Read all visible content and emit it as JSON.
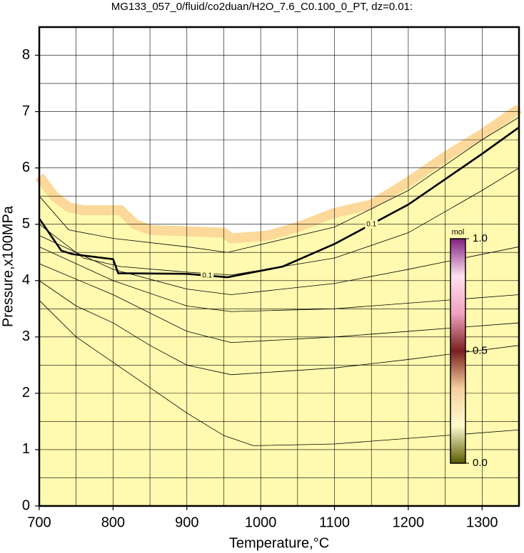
{
  "chart_data": {
    "type": "contour",
    "title": "MG133_057_0/fluid/co2duan/H2O_7.6_C0.100_0_PT, dz=0.01:",
    "x_label": "Temperature,°C",
    "y_label": "Pressure,x100MPa",
    "xlim": [
      700,
      1350
    ],
    "ylim": [
      0,
      8.5
    ],
    "xticks": [
      700,
      800,
      900,
      1000,
      1100,
      1200,
      1300
    ],
    "yticks": [
      0,
      1,
      2,
      3,
      4,
      5,
      6,
      7,
      8
    ],
    "xgrid": [
      700,
      750,
      800,
      850,
      900,
      950,
      1000,
      1050,
      1100,
      1150,
      1200,
      1250,
      1300,
      1350
    ],
    "ygrid": [
      0,
      0.5,
      1,
      1.5,
      2,
      2.5,
      3,
      3.5,
      4,
      4.5,
      5,
      5.5,
      6,
      6.5,
      7,
      7.5,
      8,
      8.5
    ],
    "fill_color": "#fffaaf",
    "edge_color": "#fcd99a",
    "data_boundary": {
      "x": [
        700,
        720,
        740,
        760,
        810,
        830,
        850,
        950,
        960,
        1010,
        1050,
        1100,
        1150,
        1200,
        1250,
        1300,
        1350
      ],
      "y": [
        5.85,
        5.5,
        5.3,
        5.25,
        5.25,
        5.0,
        4.9,
        4.85,
        4.75,
        4.8,
        4.95,
        5.2,
        5.35,
        5.75,
        6.2,
        6.6,
        7.05
      ]
    },
    "contours": [
      {
        "x": [
          700,
          750,
          800,
          850,
          900,
          950,
          990,
          1100,
          1200,
          1350
        ],
        "y": [
          3.65,
          3.0,
          2.55,
          2.1,
          1.65,
          1.25,
          1.07,
          1.1,
          1.2,
          1.35
        ]
      },
      {
        "x": [
          700,
          750,
          800,
          850,
          900,
          960,
          1100,
          1200,
          1350
        ],
        "y": [
          4.0,
          3.55,
          3.25,
          2.85,
          2.5,
          2.33,
          2.45,
          2.6,
          2.85
        ]
      },
      {
        "x": [
          700,
          800,
          900,
          960,
          1100,
          1200,
          1350
        ],
        "y": [
          4.3,
          3.75,
          3.1,
          2.9,
          3.0,
          3.1,
          3.25
        ]
      },
      {
        "x": [
          700,
          800,
          900,
          960,
          1100,
          1350
        ],
        "y": [
          4.6,
          4.0,
          3.55,
          3.45,
          3.5,
          3.75
        ]
      },
      {
        "x": [
          700,
          800,
          900,
          960,
          1100,
          1200,
          1350
        ],
        "y": [
          4.8,
          4.2,
          3.85,
          3.75,
          3.95,
          4.2,
          4.6
        ]
      },
      {
        "x": [
          700,
          760,
          810,
          900,
          960,
          1100,
          1200,
          1300,
          1350
        ],
        "y": [
          5.0,
          4.4,
          4.25,
          4.15,
          4.1,
          4.4,
          4.85,
          5.6,
          6.0
        ]
      },
      {
        "level": 0.1,
        "bold": true,
        "x": [
          700,
          730,
          745,
          800,
          807,
          900,
          955,
          1030,
          1100,
          1200,
          1300,
          1350
        ],
        "y": [
          5.1,
          4.53,
          4.47,
          4.38,
          4.13,
          4.12,
          4.06,
          4.25,
          4.65,
          5.35,
          6.25,
          6.72
        ]
      },
      {
        "x": [
          700,
          740,
          800,
          900,
          955,
          1100,
          1200,
          1300,
          1350
        ],
        "y": [
          5.5,
          4.9,
          4.75,
          4.6,
          4.5,
          4.95,
          5.6,
          6.5,
          6.9
        ]
      }
    ],
    "colorbar": {
      "label": "mol",
      "lim": [
        0,
        1
      ],
      "ticks": [
        {
          "value": 0,
          "label": "0.0"
        },
        {
          "value": 0.5,
          "label": "0.5"
        },
        {
          "value": 1,
          "label": "1.0"
        }
      ],
      "colors": [
        "#5a5a00",
        "#fffcd0",
        "#f5cfa0",
        "#7a1f1f",
        "#f0a0c0",
        "#ffe0f0",
        "#802080"
      ]
    }
  }
}
